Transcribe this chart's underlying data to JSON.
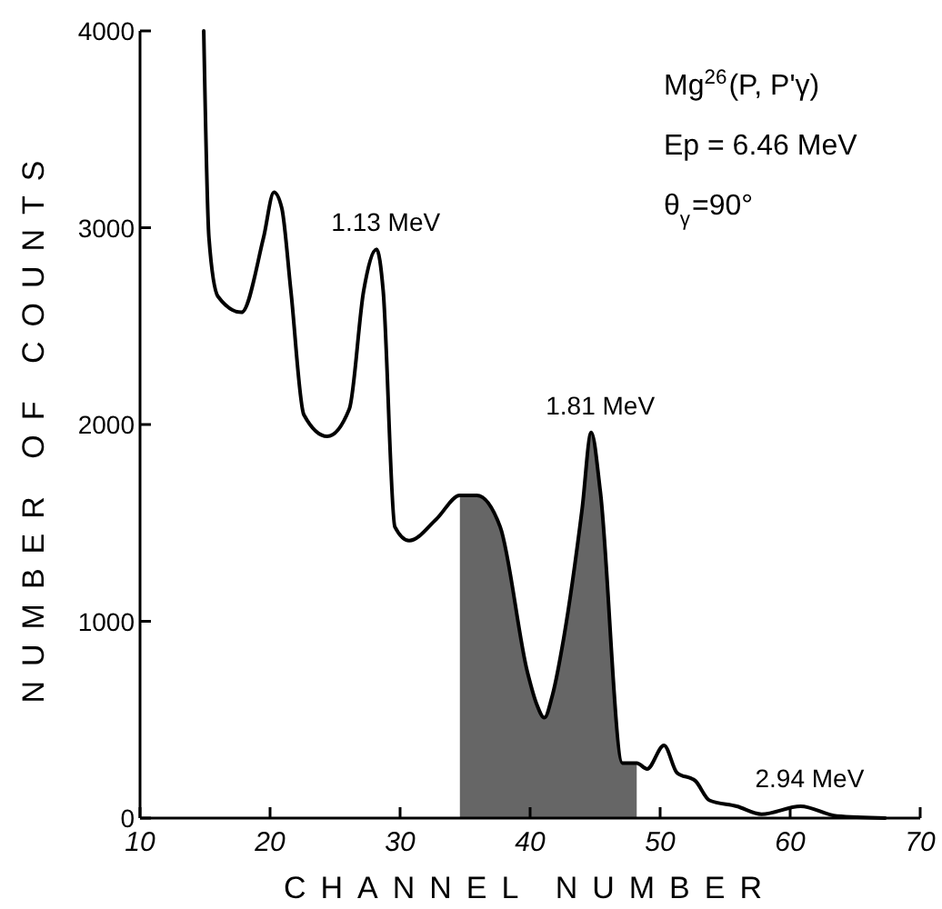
{
  "chart_data": {
    "type": "line",
    "xlabel": "CHANNEL NUMBER",
    "ylabel": "NUMBER OF COUNTS",
    "xlim": [
      10,
      70
    ],
    "ylim": [
      0,
      4000
    ],
    "xticks": [
      10,
      20,
      30,
      40,
      50,
      60,
      70
    ],
    "yticks": [
      0,
      1000,
      2000,
      3000,
      4000
    ],
    "grid": false,
    "series": [
      {
        "type": "area",
        "color": "#333333",
        "x": [
          34.6,
          35.9,
          37.7,
          39.8,
          40.5,
          41.1,
          41.7,
          42.6,
          44.0,
          44.7,
          45.4,
          47.1,
          48.2
        ],
        "values": [
          1640,
          1640,
          1480,
          740,
          580,
          510,
          620,
          920,
          1570,
          1960,
          1660,
          280,
          280
        ]
      },
      {
        "color": "#000000",
        "x": [
          14.9,
          15.3,
          16.0,
          17.8,
          19.5,
          20.3,
          20.9,
          21.6,
          22.6,
          24.4,
          26.1,
          27.2,
          28.2,
          28.7,
          29.6,
          30.7,
          32.8,
          34.6,
          35.9,
          37.7,
          39.8,
          40.5,
          41.1,
          41.7,
          42.6,
          44.0,
          44.7,
          45.4,
          47.1,
          48.2,
          49.0,
          50.3,
          51.3,
          52.7,
          53.8,
          55.9,
          57.8,
          60.8,
          63.6,
          67.3
        ],
        "values": [
          4000,
          2950,
          2650,
          2570,
          2950,
          3180,
          3100,
          2680,
          2050,
          1940,
          2080,
          2680,
          2890,
          2680,
          1480,
          1410,
          1520,
          1640,
          1640,
          1480,
          740,
          580,
          510,
          620,
          920,
          1570,
          1960,
          1660,
          280,
          280,
          250,
          370,
          230,
          190,
          90,
          60,
          20,
          60,
          10,
          0
        ]
      }
    ],
    "annotations": [
      {
        "text": "1.13 MeV",
        "x": 28.2,
        "y": 2890
      },
      {
        "text": "1.81 MeV",
        "x": 44.7,
        "y": 1960
      },
      {
        "text": "2.94 MeV",
        "x": 60.8,
        "y": 65
      },
      "Mg$^{26}$(P, P'γ)",
      "Ep = 6.46 MeV",
      "θ$_{γ}$=90°"
    ]
  }
}
